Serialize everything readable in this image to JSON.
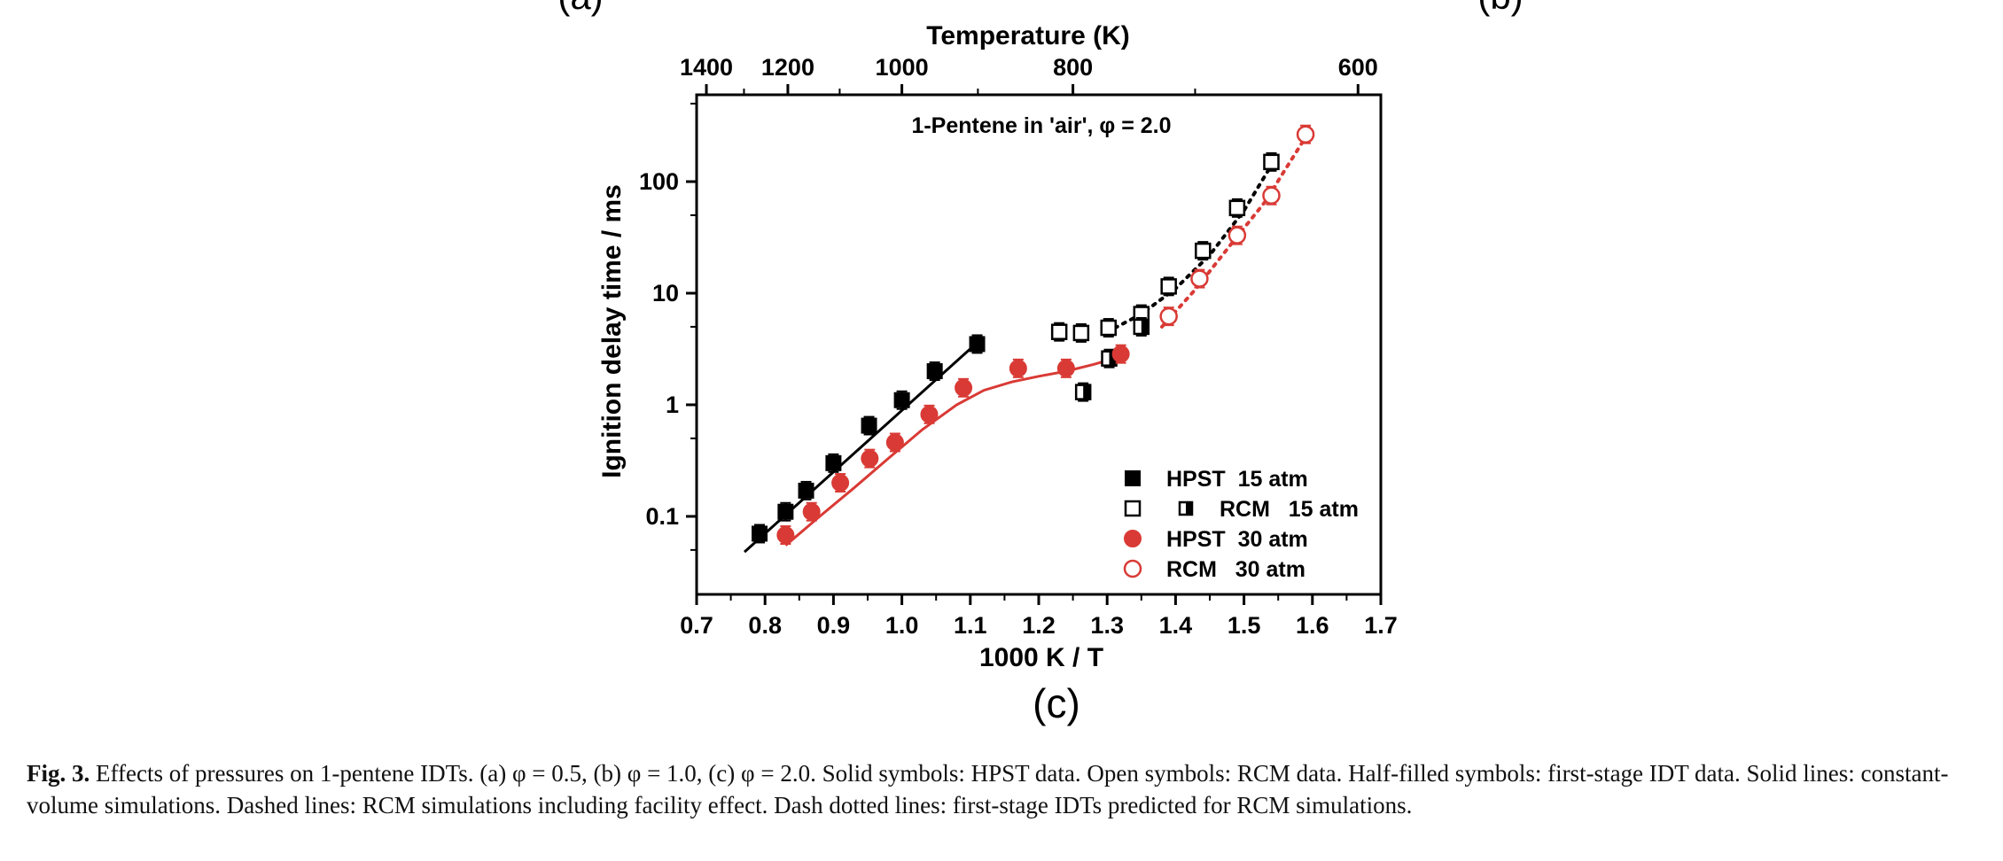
{
  "panel_partial_labels": {
    "left": "(a)",
    "right": "(b)"
  },
  "panel_label": "(c)",
  "caption": {
    "figure_label": "Fig. 3.",
    "text": "Effects of pressures on 1-pentene IDTs. (a) φ = 0.5, (b) φ = 1.0, (c) φ = 2.0. Solid symbols: HPST data. Open symbols: RCM data. Half-filled symbols: first-stage IDT data. Solid lines: constant-volume simulations. Dashed lines: RCM simulations including facility effect. Dash dotted lines: first-stage IDTs predicted for RCM simulations."
  },
  "colors": {
    "black": "#000000",
    "red": "#d93a35"
  },
  "chart_data": {
    "type": "scatter",
    "title": "1-Pentene in 'air', φ = 2.0",
    "xlabel": "1000 K / T",
    "ylabel": "Ignition delay time / ms",
    "top_xlabel": "Temperature (K)",
    "xlim": [
      0.7,
      1.7
    ],
    "ylim": [
      0.02,
      600
    ],
    "yscale": "log",
    "x_ticks": [
      "0.7",
      "0.8",
      "0.9",
      "1.0",
      "1.1",
      "1.2",
      "1.3",
      "1.4",
      "1.5",
      "1.6",
      "1.7"
    ],
    "y_ticks": [
      "0.1",
      "1",
      "10",
      "100"
    ],
    "top_x_ticks": [
      "1400",
      "1200",
      "1000",
      "800",
      "600"
    ],
    "legend_position": "bottom-right",
    "legend": [
      {
        "label": "HPST  15 atm",
        "marker": "filled-square",
        "color": "#000000"
      },
      {
        "label": "RCM   15 atm",
        "marker": "open-square + half-filled-square",
        "color": "#000000"
      },
      {
        "label": "HPST  30 atm",
        "marker": "filled-circle",
        "color": "#d93a35"
      },
      {
        "label": "RCM   30 atm",
        "marker": "open-circle",
        "color": "#d93a35"
      }
    ],
    "series": [
      {
        "name": "HPST  15 atm",
        "marker": "filled-square",
        "color": "#000000",
        "x": [
          0.792,
          0.83,
          0.86,
          0.9,
          0.952,
          1.0,
          1.048,
          1.11
        ],
        "y": [
          0.07,
          0.11,
          0.17,
          0.3,
          0.65,
          1.1,
          2.0,
          3.5
        ]
      },
      {
        "name": "RCM   15 atm",
        "marker": "open-square",
        "color": "#000000",
        "x": [
          1.23,
          1.262,
          1.302,
          1.35,
          1.39,
          1.44,
          1.49,
          1.54
        ],
        "y": [
          4.5,
          4.4,
          4.9,
          6.5,
          11.5,
          24,
          58,
          150
        ]
      },
      {
        "name": "RCM   15 atm",
        "marker": "half-filled-square",
        "color": "#000000",
        "x": [
          1.265,
          1.303,
          1.35
        ],
        "y": [
          1.3,
          2.6,
          5.0
        ]
      },
      {
        "name": "HPST  30 atm",
        "marker": "filled-circle",
        "color": "#d93a35",
        "x": [
          0.83,
          0.868,
          0.91,
          0.953,
          0.99,
          1.04,
          1.09,
          1.17,
          1.24,
          1.32
        ],
        "y": [
          0.068,
          0.11,
          0.2,
          0.33,
          0.46,
          0.82,
          1.42,
          2.12,
          2.12,
          2.85
        ]
      },
      {
        "name": "RCM   30 atm",
        "marker": "open-circle",
        "color": "#d93a35",
        "x": [
          1.39,
          1.435,
          1.49,
          1.54,
          1.59
        ],
        "y": [
          6.2,
          13.5,
          33,
          75,
          265
        ]
      }
    ],
    "lines": [
      {
        "style": "solid",
        "color": "#000000",
        "x": [
          0.77,
          1.11
        ],
        "y": [
          0.048,
          3.6
        ]
      },
      {
        "style": "solid",
        "color": "#d93a35",
        "x": [
          0.83,
          0.88,
          0.93,
          0.98,
          1.03,
          1.08,
          1.12,
          1.16,
          1.2,
          1.24,
          1.28,
          1.32
        ],
        "y": [
          0.055,
          0.1,
          0.18,
          0.33,
          0.6,
          1.0,
          1.35,
          1.6,
          1.8,
          2.0,
          2.3,
          2.7
        ]
      },
      {
        "style": "dotted",
        "color": "#000000",
        "x": [
          1.3,
          1.35,
          1.4,
          1.45,
          1.5,
          1.54
        ],
        "y": [
          4.5,
          6.5,
          11,
          22,
          55,
          140
        ]
      },
      {
        "style": "dotted",
        "color": "#d93a35",
        "x": [
          1.38,
          1.43,
          1.48,
          1.53,
          1.59
        ],
        "y": [
          5.0,
          11,
          27,
          65,
          250
        ]
      }
    ]
  }
}
